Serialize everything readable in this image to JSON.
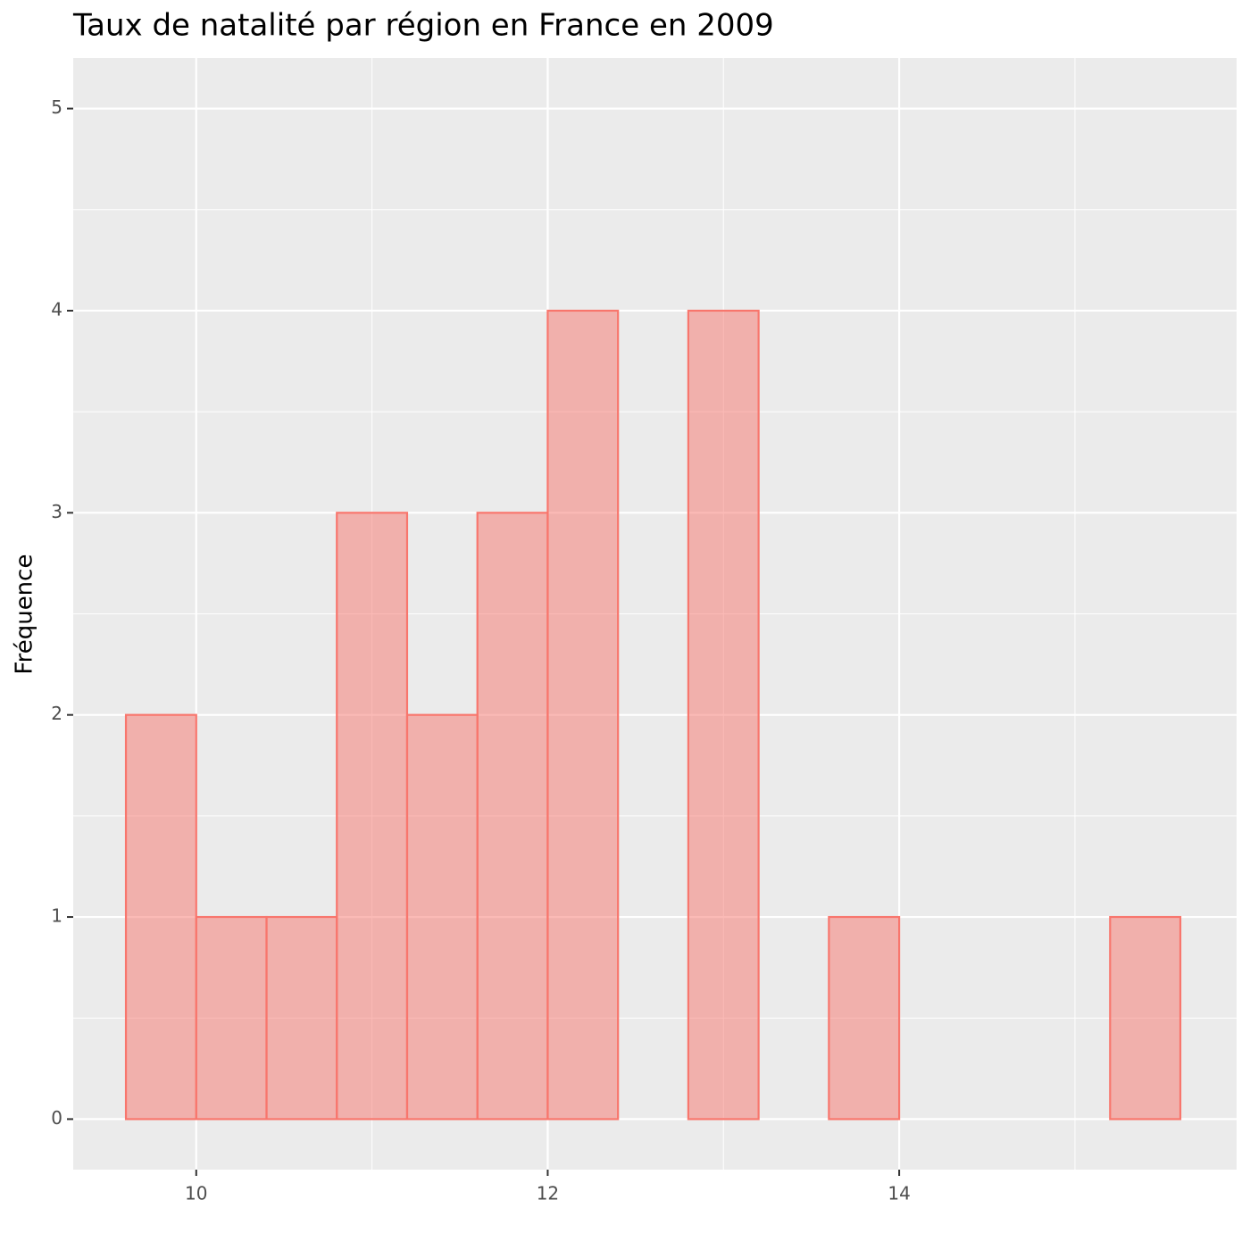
{
  "chart_data": {
    "type": "histogram",
    "title": "Taux de natalité par région en France en 2009",
    "ylabel": "Fréquence",
    "bins": [
      9.6,
      10.0,
      10.4,
      10.8,
      11.2,
      11.6,
      12.0,
      12.4,
      12.8,
      13.2,
      13.6,
      14.0,
      14.4,
      14.8,
      15.2,
      15.6
    ],
    "values": [
      2,
      1,
      1,
      3,
      2,
      3,
      4,
      0,
      4,
      0,
      1,
      0,
      0,
      0,
      1
    ],
    "color": "#F8766D",
    "xlim": [
      9.3,
      15.92
    ],
    "xticks": [
      10,
      12,
      14
    ],
    "ylim": [
      -0.25,
      5.25
    ],
    "yticks": [
      0,
      1,
      2,
      3,
      4,
      5
    ],
    "grid": true
  }
}
